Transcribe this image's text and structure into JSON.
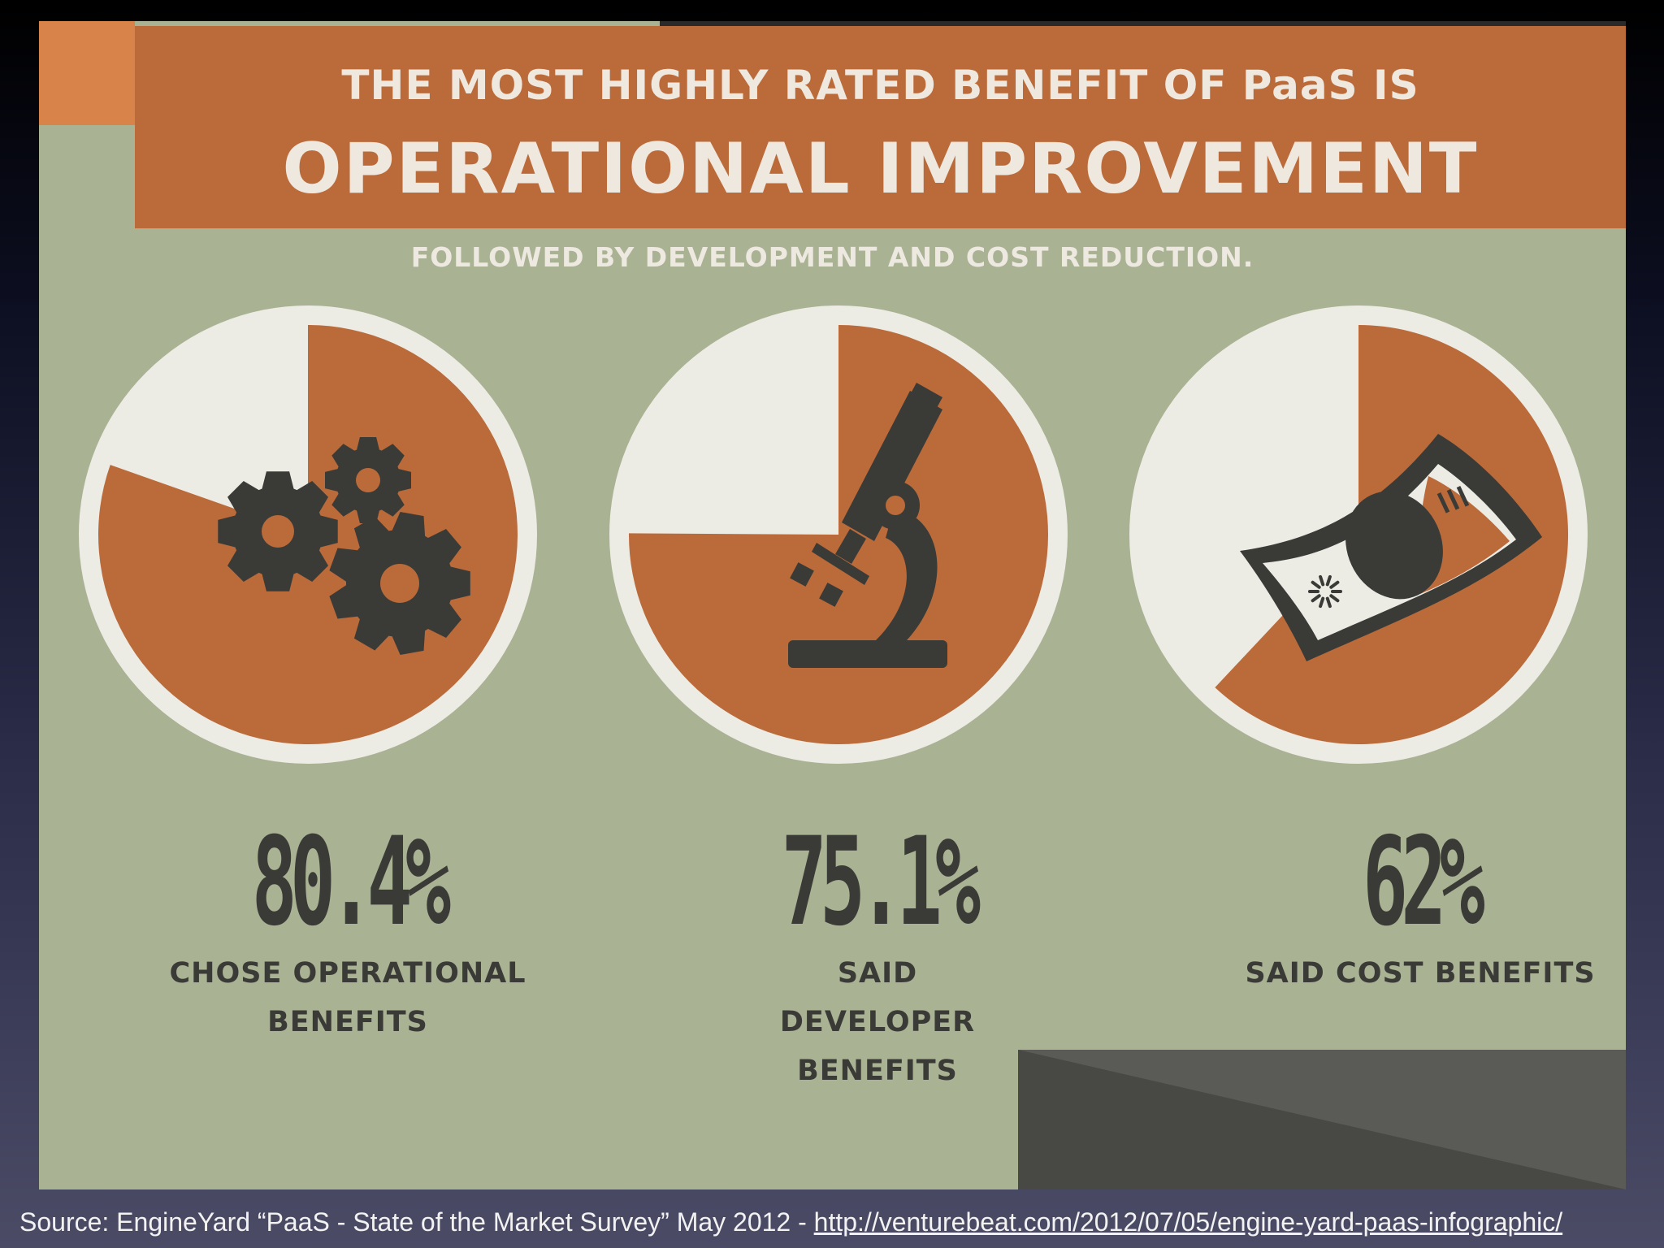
{
  "banner": {
    "line1": "THE MOST HIGHLY RATED BENEFIT OF PaaS IS",
    "line2": "OPERATIONAL IMPROVEMENT"
  },
  "subtitle": "FOLLOWED BY DEVELOPMENT AND COST REDUCTION.",
  "chart_data": {
    "type": "pie",
    "title": "THE MOST HIGHLY RATED BENEFIT OF PaaS IS OPERATIONAL IMPROVEMENT",
    "subtitle": "FOLLOWED BY DEVELOPMENT AND COST REDUCTION.",
    "series": [
      {
        "value": 80.4,
        "label": "80.4%",
        "caption": "CHOSE OPERATIONAL BENEFITS",
        "icon": "gears-icon"
      },
      {
        "value": 75.1,
        "label": "75.1%",
        "caption": "SAID DEVELOPER BENEFITS",
        "icon": "microscope-icon"
      },
      {
        "value": 62,
        "label": "62%",
        "caption": "SAID COST BENEFITS",
        "icon": "money-bill-icon"
      }
    ],
    "unit": "%",
    "max": 100
  },
  "colors": {
    "background": "#a9b293",
    "accent": "#bb6a3a",
    "pie_remainder": "#ecebe4",
    "icon": "#3a3b37"
  },
  "source": {
    "prefix": "Source: EngineYard “PaaS - State of the Market Survey” May 2012 - ",
    "link": "http://venturebeat.com/2012/07/05/engine-yard-paas-infographic/"
  }
}
